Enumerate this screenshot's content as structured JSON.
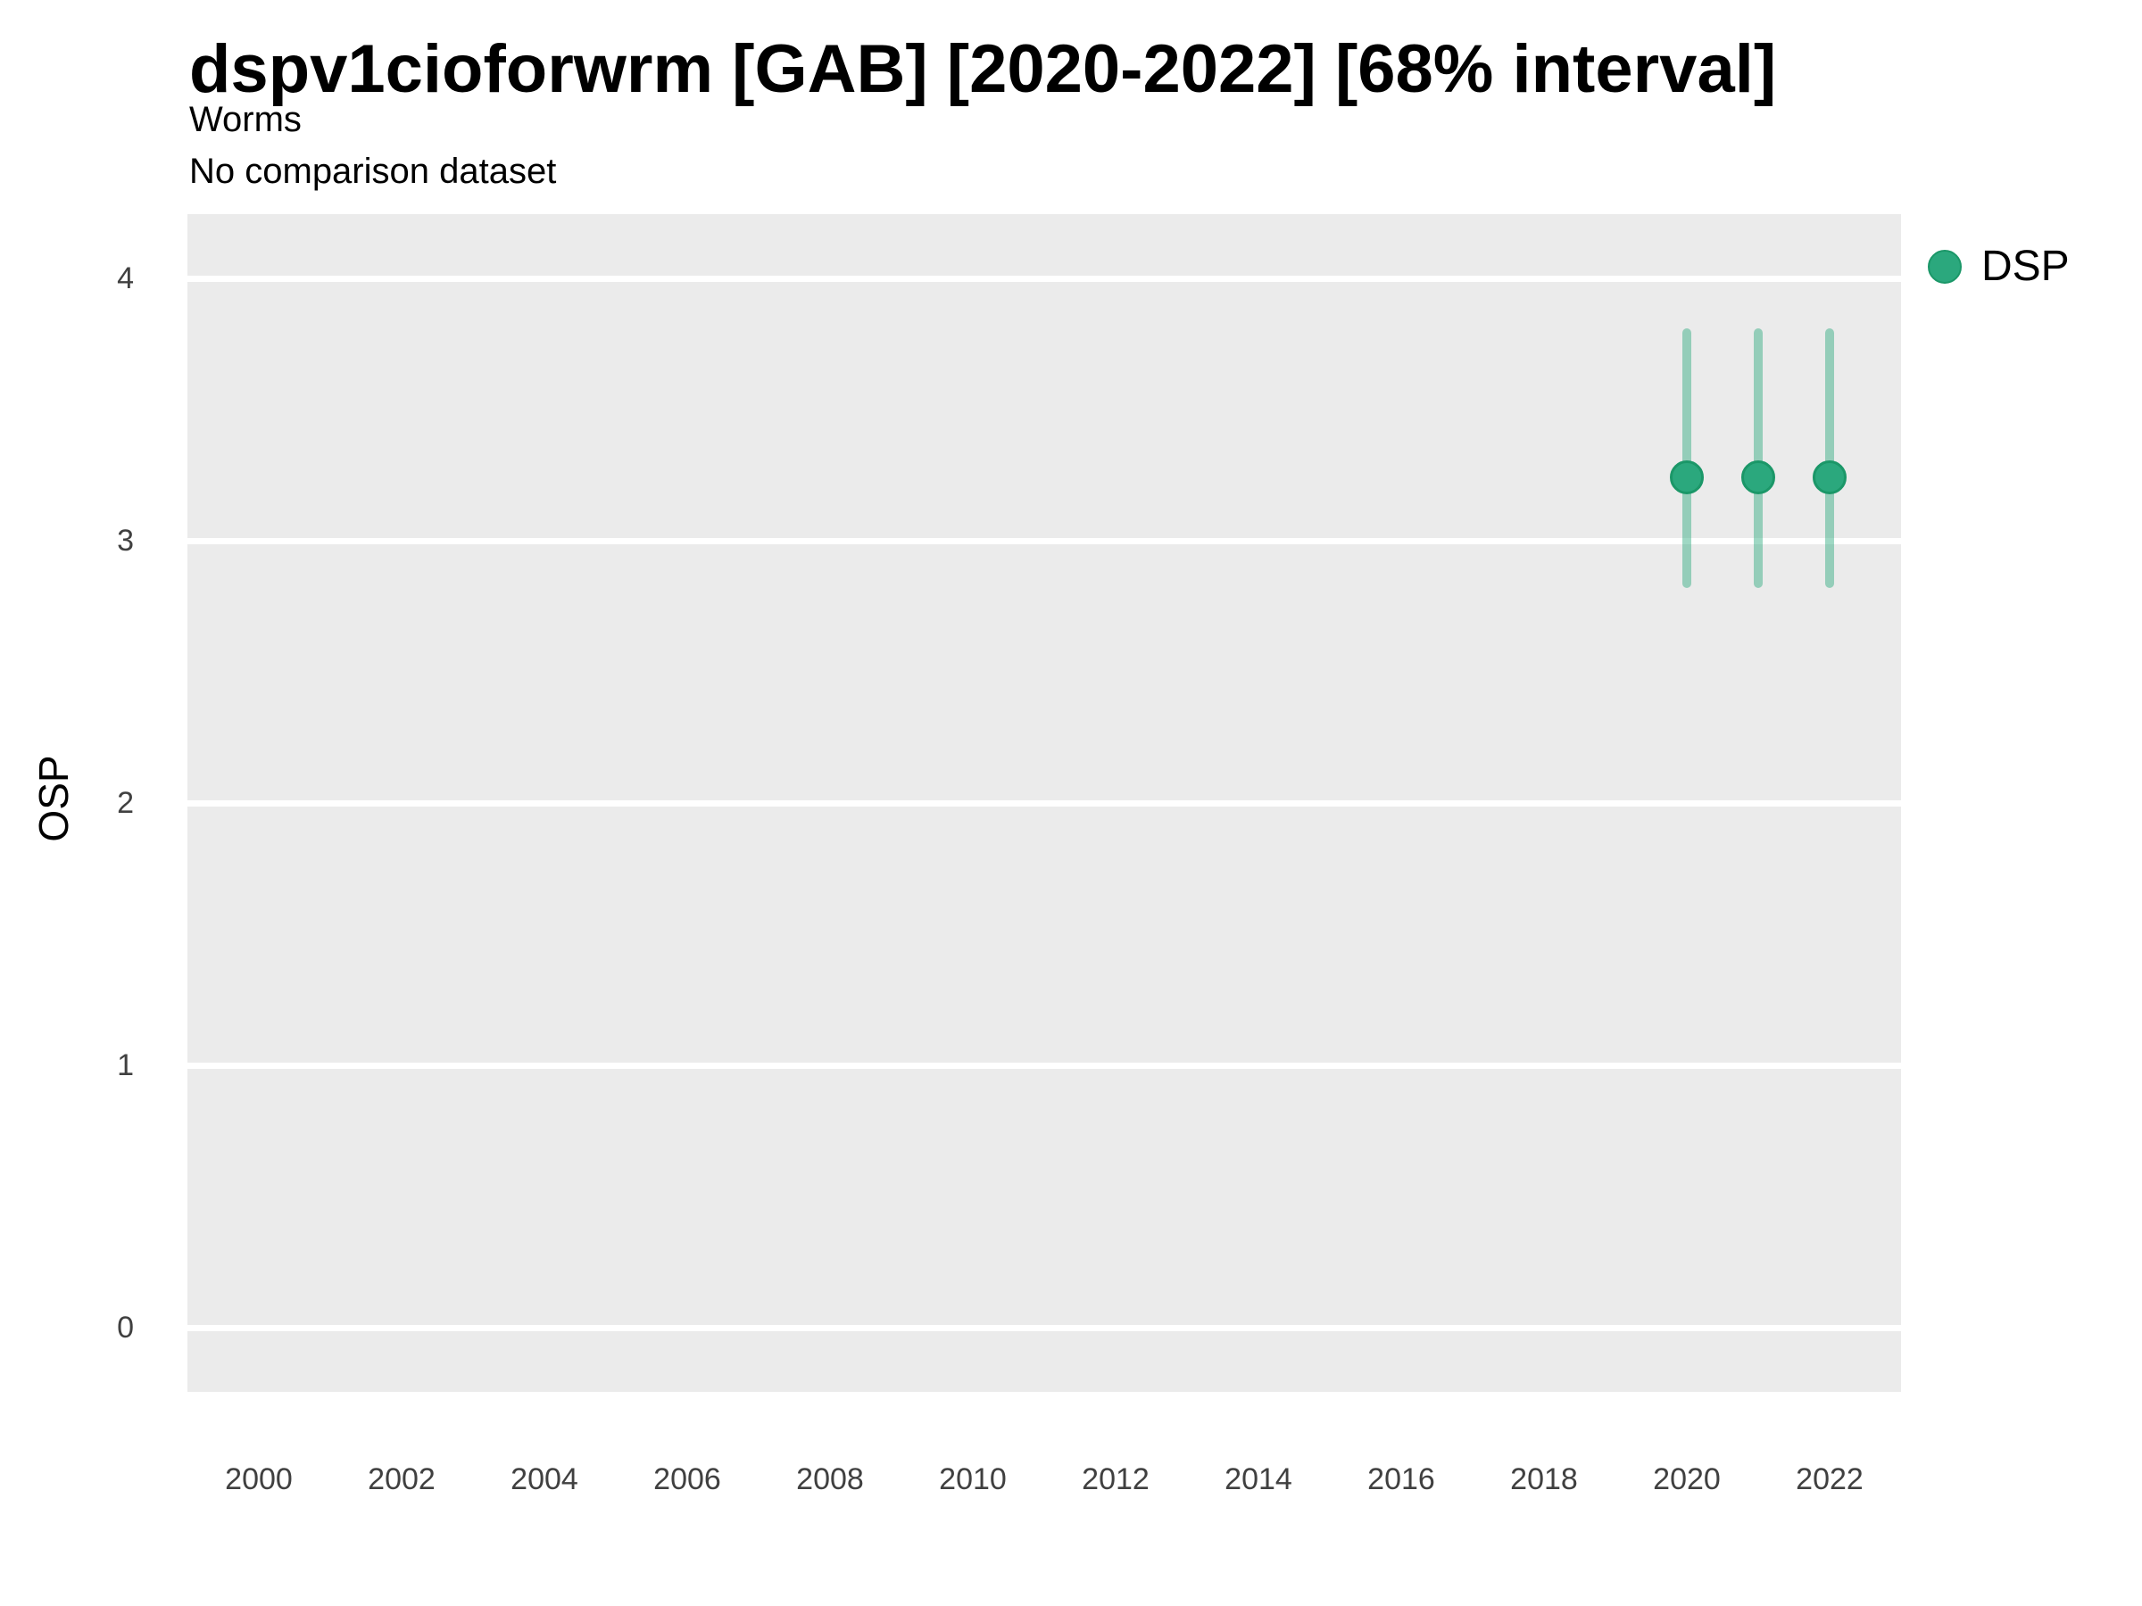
{
  "chart_data": {
    "type": "scatter",
    "variant": "pointrange",
    "title": "dspv1cioforwrm [GAB] [2020-2022] [68% interval]",
    "subtitle": [
      "Worms",
      "No comparison dataset"
    ],
    "xlabel": "",
    "ylabel": "OSP",
    "interval_level": "68%",
    "x_ticks": [
      2000,
      2002,
      2004,
      2006,
      2008,
      2010,
      2012,
      2014,
      2016,
      2018,
      2020,
      2022
    ],
    "y_ticks": [
      4,
      3,
      2,
      1,
      0
    ],
    "xlim": [
      1999,
      2023
    ],
    "ylim": [
      -0.25,
      4.25
    ],
    "grid": "horizontal-major-only",
    "legend_position": "right-top",
    "series": [
      {
        "name": "DSP",
        "points": [
          {
            "x": 2020,
            "y": 3.24,
            "ymin": 2.82,
            "ymax": 3.81
          },
          {
            "x": 2021,
            "y": 3.24,
            "ymin": 2.82,
            "ymax": 3.81
          },
          {
            "x": 2022,
            "y": 3.24,
            "ymin": 2.82,
            "ymax": 3.81
          }
        ]
      }
    ]
  },
  "colors": {
    "panel_background": "#EBEBEB",
    "gridline": "#FFFFFF",
    "point_fill": "#2BA87D",
    "point_border": "#1B9768",
    "interval_line": "rgba(43,168,125,0.45)",
    "axis_text": "#404040",
    "title_text": "#000000"
  }
}
